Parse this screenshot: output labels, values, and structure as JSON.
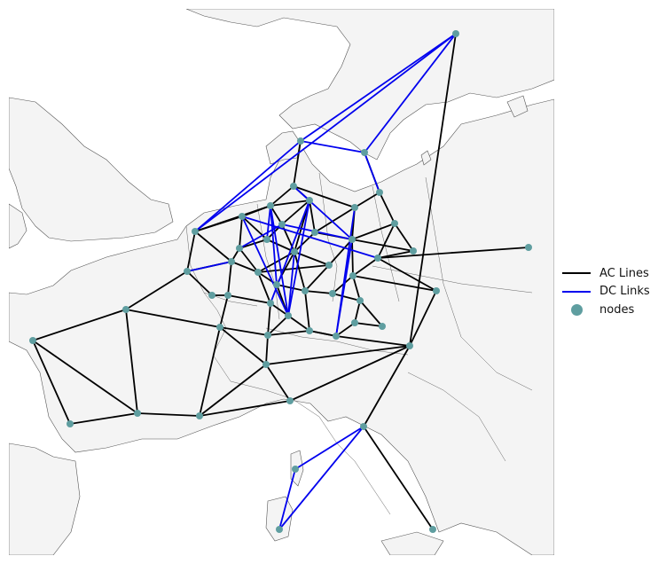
{
  "legend": {
    "ac_label": "AC Lines",
    "dc_label": "DC Links",
    "nodes_label": "nodes"
  },
  "colors": {
    "ac": "#000000",
    "dc": "#0000ee",
    "node": "#5f9ea0",
    "land": "#f4f4f4",
    "border": "#555555",
    "sea": "#ffffff"
  }
}
